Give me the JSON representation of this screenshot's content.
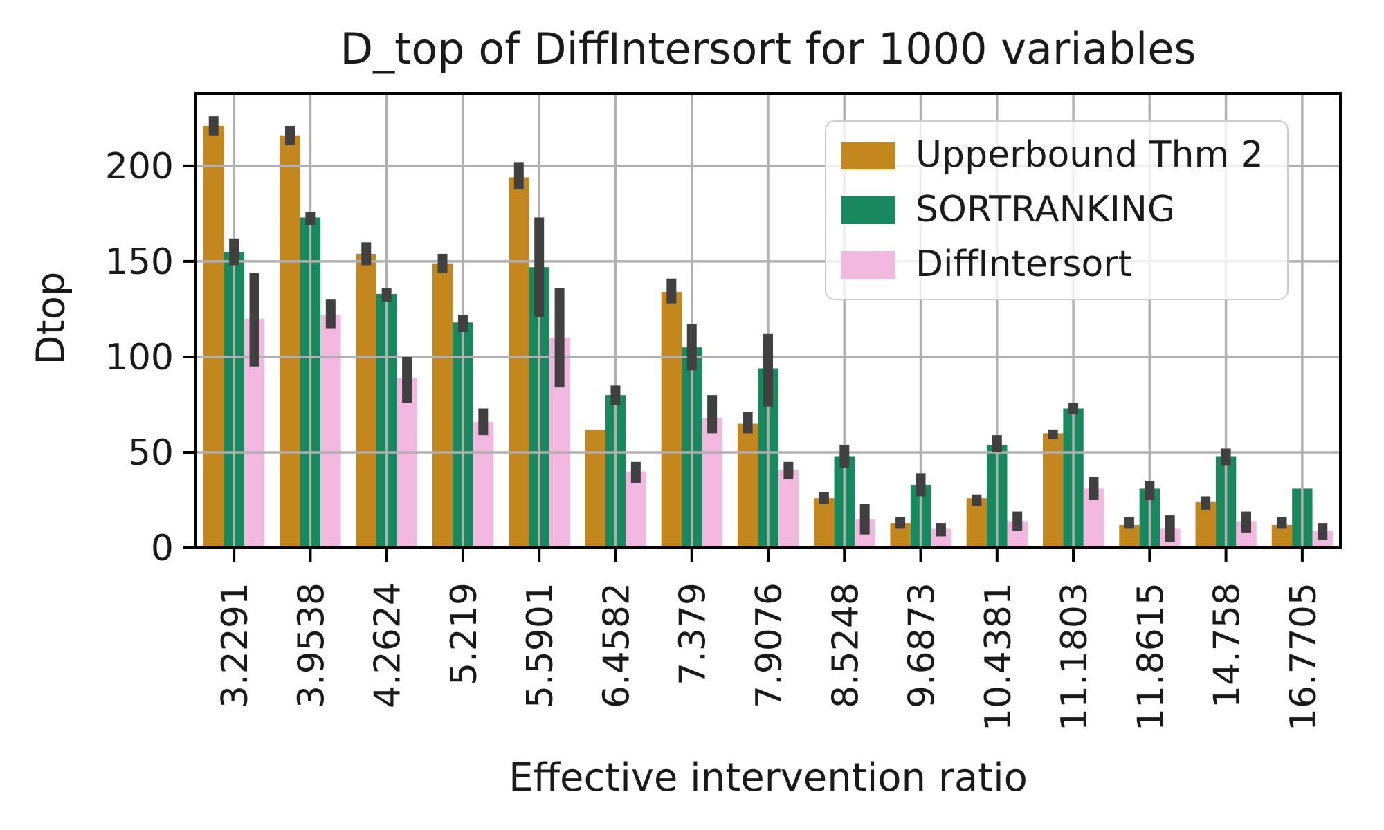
{
  "figure": {
    "title": "D_top of DiffIntersort for 1000 variables"
  },
  "chart_data": {
    "type": "bar",
    "title": "D_top of DiffIntersort for 1000 variables",
    "xlabel": "Effective intervention ratio",
    "ylabel": "Dtop",
    "categories": [
      "3.2291",
      "3.9538",
      "4.2624",
      "5.219",
      "5.5901",
      "6.4582",
      "7.379",
      "7.9076",
      "8.5248",
      "9.6873",
      "10.4381",
      "11.1803",
      "11.8615",
      "14.758",
      "16.7705"
    ],
    "y_ticks": [
      0,
      50,
      100,
      150,
      200
    ],
    "ylim": [
      0,
      238
    ],
    "grid": true,
    "grid_color": "#b0b0b0",
    "error_bar_color": "#404040",
    "axis_color": "#000000",
    "text_color": "#1a1a1a",
    "legend_position": "upper right",
    "series": [
      {
        "name": "Upperbound Thm 2",
        "color": "#c3871e",
        "values": [
          221,
          216,
          154,
          149,
          194,
          62,
          134,
          65,
          26,
          13,
          26,
          60,
          12,
          24,
          12
        ],
        "err_low": [
          216,
          211,
          148,
          144,
          188,
          62,
          128,
          60,
          23,
          10,
          22,
          57,
          10,
          20,
          10
        ],
        "err_high": [
          226,
          221,
          160,
          154,
          202,
          62,
          141,
          71,
          29,
          16,
          28,
          62,
          16,
          27,
          16
        ]
      },
      {
        "name": "SORTRANKING",
        "color": "#18885f",
        "values": [
          155,
          173,
          133,
          118,
          147,
          80,
          105,
          94,
          48,
          33,
          54,
          73,
          31,
          48,
          31
        ],
        "err_low": [
          148,
          169,
          129,
          113,
          121,
          75,
          93,
          74,
          42,
          27,
          50,
          70,
          25,
          43,
          31
        ],
        "err_high": [
          162,
          176,
          136,
          122,
          173,
          85,
          117,
          112,
          54,
          39,
          59,
          76,
          35,
          52,
          31
        ]
      },
      {
        "name": "DiffIntersort",
        "color": "#f2b8e0",
        "values": [
          120,
          122,
          89,
          66,
          110,
          40,
          68,
          41,
          15,
          10,
          14,
          31,
          10,
          14,
          9
        ],
        "err_low": [
          95,
          115,
          76,
          59,
          84,
          34,
          60,
          36,
          7,
          6,
          9,
          25,
          3,
          8,
          4
        ],
        "err_high": [
          144,
          130,
          100,
          73,
          136,
          45,
          80,
          45,
          23,
          13,
          19,
          37,
          17,
          19,
          13
        ]
      }
    ]
  }
}
